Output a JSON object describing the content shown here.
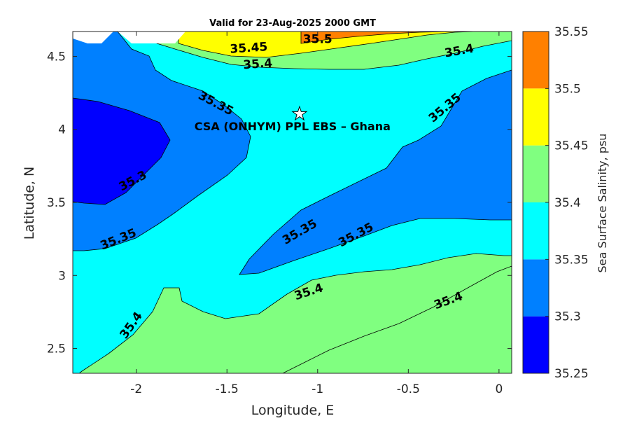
{
  "chart_data": {
    "type": "contour",
    "title": "Valid for 23-Aug-2025 2000 GMT",
    "xlabel": "Longitude, E",
    "ylabel": "Latitude, N",
    "xlim": [
      -2.35,
      0.07
    ],
    "ylim": [
      2.33,
      4.67
    ],
    "x_ticks": [
      {
        "value": -2,
        "label": "-2"
      },
      {
        "value": -1.5,
        "label": "-1.5"
      },
      {
        "value": -1,
        "label": "-1"
      },
      {
        "value": -0.5,
        "label": "-0.5"
      },
      {
        "value": 0,
        "label": "0"
      }
    ],
    "y_ticks": [
      {
        "value": 2.5,
        "label": "2.5"
      },
      {
        "value": 3,
        "label": "3"
      },
      {
        "value": 3.5,
        "label": "3.5"
      },
      {
        "value": 4,
        "label": "4"
      },
      {
        "value": 4.5,
        "label": "4.5"
      }
    ],
    "colorbar": {
      "label": "Sea Surface Salinity, psu",
      "levels": [
        {
          "from": 35.25,
          "to": 35.3,
          "color": "#0000ff"
        },
        {
          "from": 35.3,
          "to": 35.35,
          "color": "#0080ff"
        },
        {
          "from": 35.35,
          "to": 35.4,
          "color": "#00ffff"
        },
        {
          "from": 35.4,
          "to": 35.45,
          "color": "#80ff80"
        },
        {
          "from": 35.45,
          "to": 35.5,
          "color": "#ffff00"
        },
        {
          "from": 35.5,
          "to": 35.55,
          "color": "#ff8000"
        }
      ],
      "tick_labels": [
        "35.55",
        "35.5",
        "35.45",
        "35.4",
        "35.35",
        "35.3",
        "35.25"
      ]
    },
    "station": {
      "name": "CSA (ONHYM) PPL EBS  – Ghana",
      "lon": -1.1,
      "lat": 4.11
    },
    "contour_labels": [
      {
        "text": "35.5",
        "lon": -1.0,
        "lat": 4.62
      },
      {
        "text": "35.45",
        "lon": -1.38,
        "lat": 4.56
      },
      {
        "text": "35.4",
        "lon": -1.33,
        "lat": 4.45
      },
      {
        "text": "35.4",
        "lon": -0.22,
        "lat": 4.54
      },
      {
        "text": "35.35",
        "lon": -1.56,
        "lat": 4.18
      },
      {
        "text": "35.35",
        "lon": -0.3,
        "lat": 4.15
      },
      {
        "text": "35.3",
        "lon": -2.02,
        "lat": 3.65
      },
      {
        "text": "35.35",
        "lon": -2.1,
        "lat": 3.25
      },
      {
        "text": "35.35",
        "lon": -1.1,
        "lat": 3.3
      },
      {
        "text": "35.35",
        "lon": -0.79,
        "lat": 3.28
      },
      {
        "text": "35.4",
        "lon": -1.05,
        "lat": 2.89
      },
      {
        "text": "35.4",
        "lon": -2.03,
        "lat": 2.66
      },
      {
        "text": "35.4",
        "lon": -0.28,
        "lat": 2.83
      }
    ]
  }
}
